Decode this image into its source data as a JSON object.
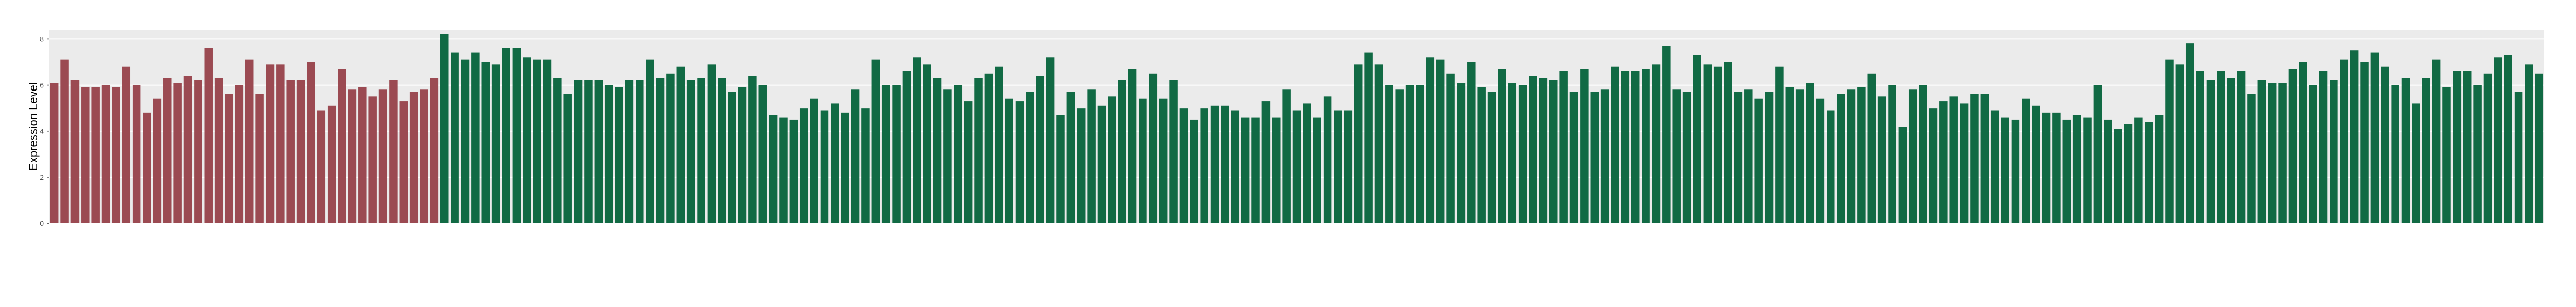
{
  "chart_data": {
    "type": "bar",
    "ylabel": "Expression Level",
    "ylim": [
      0,
      8.4
    ],
    "yticks": [
      0,
      2,
      4,
      6,
      8
    ],
    "grid": true,
    "series": [
      {
        "color": "#9b4a52",
        "values": [
          6.1,
          7.1,
          6.2,
          5.9,
          5.9,
          6.0,
          5.9,
          6.8,
          6.0,
          4.8,
          5.4,
          6.3,
          6.1,
          6.4,
          6.2,
          7.6,
          6.3,
          5.6,
          6.0,
          7.1,
          5.6,
          6.9,
          6.9,
          6.2,
          6.2,
          7.0,
          4.9,
          5.1,
          6.7,
          5.8,
          5.9,
          5.5,
          5.8,
          6.2,
          5.3,
          5.7,
          5.8,
          6.3
        ]
      },
      {
        "color": "#116a44",
        "values": [
          8.2,
          7.4,
          7.1,
          7.4,
          7.0,
          6.9,
          7.6,
          7.6,
          7.2,
          7.1,
          7.1,
          6.3,
          5.6,
          6.2,
          6.2,
          6.2,
          6.0,
          5.9,
          6.2,
          6.2,
          7.1,
          6.3,
          6.5,
          6.8,
          6.2,
          6.3,
          6.9,
          6.3,
          5.7,
          5.9,
          6.4,
          6.0,
          4.7,
          4.6,
          4.5,
          5.0,
          5.4,
          4.9,
          5.2,
          4.8,
          5.8,
          5.0,
          7.1,
          6.0,
          6.0,
          6.6,
          7.2,
          6.9,
          6.3,
          5.8,
          6.0,
          5.3,
          6.3,
          6.5,
          6.8,
          5.4,
          5.3,
          5.7,
          6.4,
          7.2,
          4.7,
          5.7,
          5.0,
          5.8,
          5.1,
          5.5,
          6.2,
          6.7,
          5.4,
          6.5,
          5.4,
          6.2,
          5.0,
          4.5,
          5.0,
          5.1,
          5.1,
          4.9,
          4.6,
          4.6,
          5.3,
          4.6,
          5.8,
          4.9,
          5.2,
          4.6,
          5.5,
          4.9,
          4.9,
          6.9,
          7.4,
          6.9,
          6.0,
          5.8,
          6.0,
          6.0,
          7.2,
          7.1,
          6.5,
          6.1,
          7.0,
          5.9,
          5.7,
          6.7,
          6.1,
          6.0,
          6.4,
          6.3,
          6.2,
          6.6,
          5.7,
          6.7,
          5.7,
          5.8,
          6.8,
          6.6,
          6.6,
          6.7,
          6.9,
          7.7,
          5.8,
          5.7,
          7.3,
          6.9,
          6.8,
          7.0,
          5.7,
          5.8,
          5.4,
          5.7,
          6.8,
          5.9,
          5.8,
          6.1,
          5.4,
          4.9,
          5.6,
          5.8,
          5.9,
          6.5,
          5.5,
          6.0,
          4.2,
          5.8,
          6.0,
          5.0,
          5.3,
          5.5,
          5.2,
          5.6,
          5.6,
          4.9,
          4.6,
          4.5,
          5.4,
          5.1,
          4.8,
          4.8,
          4.5,
          4.7,
          4.6,
          6.0,
          4.5,
          4.1,
          4.3,
          4.6,
          4.4,
          4.7,
          7.1,
          6.9,
          7.8,
          6.6,
          6.2,
          6.6,
          6.3,
          6.6,
          5.6,
          6.2,
          6.1,
          6.1,
          6.7,
          7.0,
          6.0,
          6.6,
          6.2,
          7.1,
          7.5,
          7.0,
          7.4,
          6.8,
          6.0,
          6.3,
          5.2,
          6.3,
          7.1,
          5.9,
          6.6,
          6.6,
          6.0,
          6.5,
          7.2,
          7.3,
          5.7,
          6.9,
          6.5
        ]
      }
    ]
  }
}
